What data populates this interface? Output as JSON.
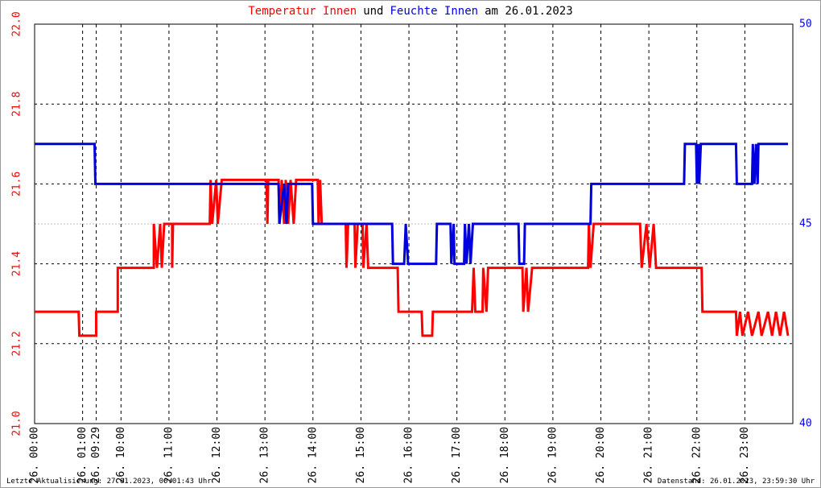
{
  "chart_data": {
    "type": "line",
    "title_parts": [
      "und",
      "am 26.01.2023"
    ],
    "footer_left": "Letzte Aktualisierung: 27.01.2023, 00:01:43 Uhr",
    "footer_right": "Datenstand: 26.01.2023, 23:59:30 Uhr",
    "xlim": [
      0,
      948
    ],
    "xticks": [
      {
        "value": 0,
        "label": "26. 00:00"
      },
      {
        "value": 60,
        "label": "26. 01:00"
      },
      {
        "value": 77,
        "label": "26. 09:29"
      },
      {
        "value": 108,
        "label": "26. 10:00"
      },
      {
        "value": 168,
        "label": "26. 11:00"
      },
      {
        "value": 228,
        "label": "26. 12:00"
      },
      {
        "value": 288,
        "label": "26. 13:00"
      },
      {
        "value": 348,
        "label": "26. 14:00"
      },
      {
        "value": 408,
        "label": "26. 15:00"
      },
      {
        "value": 468,
        "label": "26. 16:00"
      },
      {
        "value": 528,
        "label": "26. 17:00"
      },
      {
        "value": 588,
        "label": "26. 18:00"
      },
      {
        "value": 648,
        "label": "26. 19:00"
      },
      {
        "value": 708,
        "label": "26. 20:00"
      },
      {
        "value": 768,
        "label": "26. 21:00"
      },
      {
        "value": 828,
        "label": "26. 22:00"
      },
      {
        "value": 888,
        "label": "26. 23:00"
      }
    ],
    "ylim": [
      21.0,
      22.0
    ],
    "yticks": [
      {
        "value": 21.0,
        "label": "21.0"
      },
      21.2,
      21.4,
      21.6,
      21.8,
      {
        "value": 22.0,
        "label": "22.0"
      }
    ],
    "y2lim": [
      40,
      50
    ],
    "y2ticks": [
      40,
      45,
      50
    ],
    "grid": true,
    "series": [
      {
        "name": "Temperatur Innen",
        "color": "#ff0000",
        "axis": "y",
        "x": [
          0,
          55,
          56,
          77,
          77,
          104,
          104,
          149,
          149,
          153,
          157,
          159,
          162,
          172,
          172,
          173,
          219,
          220,
          222,
          227,
          229,
          234,
          290,
          291,
          292,
          305,
          306,
          309,
          312,
          314,
          317,
          320,
          324,
          327,
          354,
          355,
          357,
          359,
          389,
          390,
          392,
          400,
          401,
          404,
          410,
          411,
          415,
          417,
          454,
          455,
          484,
          485,
          497,
          498,
          547,
          549,
          551,
          560,
          561,
          565,
          567,
          610,
          611,
          615,
          617,
          622,
          692,
          693,
          695,
          699,
          757,
          759,
          765,
          769,
          774,
          777,
          834,
          835,
          877,
          878,
          882,
          885,
          892,
          897,
          905,
          909,
          917,
          922,
          927,
          932,
          937,
          942
        ],
        "values": [
          21.28,
          21.28,
          21.22,
          21.22,
          21.28,
          21.28,
          21.39,
          21.39,
          21.5,
          21.39,
          21.5,
          21.39,
          21.5,
          21.5,
          21.39,
          21.5,
          21.5,
          21.61,
          21.5,
          21.61,
          21.5,
          21.61,
          21.61,
          21.5,
          21.61,
          21.61,
          21.5,
          21.61,
          21.5,
          21.61,
          21.5,
          21.61,
          21.5,
          21.61,
          21.61,
          21.5,
          21.61,
          21.5,
          21.5,
          21.39,
          21.5,
          21.5,
          21.39,
          21.5,
          21.5,
          21.39,
          21.5,
          21.39,
          21.39,
          21.28,
          21.28,
          21.22,
          21.22,
          21.28,
          21.28,
          21.39,
          21.28,
          21.28,
          21.39,
          21.28,
          21.39,
          21.39,
          21.28,
          21.39,
          21.28,
          21.39,
          21.39,
          21.5,
          21.39,
          21.5,
          21.5,
          21.39,
          21.5,
          21.39,
          21.5,
          21.39,
          21.39,
          21.28,
          21.28,
          21.22,
          21.28,
          21.22,
          21.28,
          21.22,
          21.28,
          21.22,
          21.28,
          21.22,
          21.28,
          21.22,
          21.28,
          21.22
        ]
      },
      {
        "name": "Feuchte Innen",
        "color": "#0000dd",
        "axis": "y2",
        "x": [
          0,
          75,
          76,
          305,
          306,
          312,
          315,
          317,
          347,
          348,
          447,
          448,
          462,
          464,
          467,
          502,
          503,
          520,
          521,
          524,
          525,
          537,
          538,
          540,
          543,
          545,
          548,
          605,
          606,
          612,
          613,
          695,
          696,
          812,
          813,
          827,
          828,
          830,
          831,
          833,
          877,
          878,
          897,
          898,
          900,
          902,
          904,
          905,
          942
        ],
        "values": [
          47,
          47,
          46,
          46,
          45,
          46,
          45,
          46,
          46,
          45,
          45,
          44,
          44,
          45,
          44,
          44,
          45,
          45,
          44,
          45,
          44,
          44,
          45,
          44,
          45,
          44,
          45,
          45,
          44,
          44,
          45,
          45,
          46,
          46,
          47,
          47,
          46,
          47,
          46,
          47,
          47,
          46,
          46,
          47,
          46,
          47,
          46,
          47,
          47
        ]
      }
    ]
  }
}
